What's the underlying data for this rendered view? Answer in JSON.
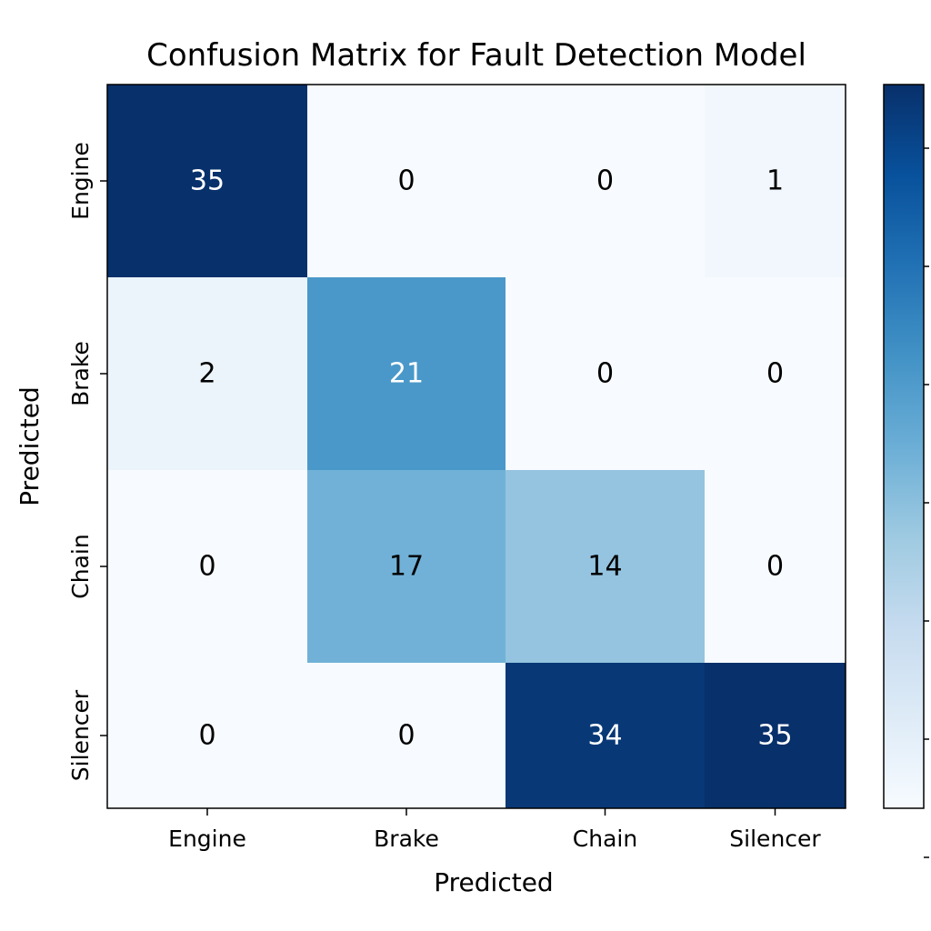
{
  "chart_data": {
    "type": "heatmap",
    "title": "Confusion Matrix for Fault Detection Model",
    "xlabel": "Predicted",
    "ylabel": "Predicted",
    "x_categories": [
      "Engine",
      "Brake",
      "Chain",
      "Silencer"
    ],
    "y_categories": [
      "Engine",
      "Brake",
      "Chain",
      "Silencer"
    ],
    "values": [
      [
        35,
        0,
        0,
        1
      ],
      [
        2,
        21,
        0,
        0
      ],
      [
        0,
        17,
        14,
        0
      ],
      [
        0,
        0,
        34,
        35
      ]
    ],
    "colormap": "Blues",
    "colorbar": {
      "tick_count": 7,
      "tick_labels": []
    },
    "colors": {
      "low": "#f7fbff",
      "high": "#08306b",
      "text_dark": "#000000",
      "text_light": "#ffffff"
    }
  }
}
